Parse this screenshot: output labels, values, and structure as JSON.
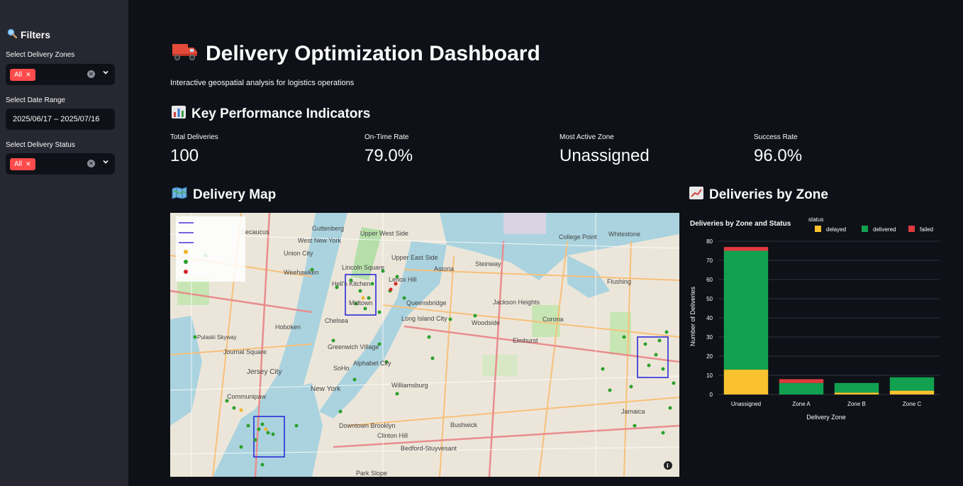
{
  "sidebar": {
    "title": "Filters",
    "zones_label": "Select Delivery Zones",
    "zones_chip": "All",
    "date_label": "Select Date Range",
    "date_value": "2025/06/17 – 2025/07/16",
    "status_label": "Select Delivery Status",
    "status_chip": "All"
  },
  "header": {
    "title": "Delivery Optimization Dashboard",
    "subtitle": "Interactive geospatial analysis for logistics operations"
  },
  "kpi": {
    "heading": "Key Performance Indicators",
    "items": [
      {
        "label": "Total Deliveries",
        "value": "100"
      },
      {
        "label": "On-Time Rate",
        "value": "79.0%"
      },
      {
        "label": "Most Active Zone",
        "value": "Unassigned"
      },
      {
        "label": "Success Rate",
        "value": "96.0%"
      }
    ]
  },
  "map_section": {
    "heading": "Delivery Map",
    "places": [
      "Guttenberg",
      "West New York",
      "Union City",
      "Weehawken",
      "Hell's Kitchen",
      "Midtown",
      "Hoboken",
      "Jersey City",
      "Chelsea",
      "Greenwich Village",
      "SoHo",
      "Alphabet City",
      "New York",
      "Williamsburg",
      "Astoria",
      "Upper East Side",
      "Upper West Side",
      "Queensbridge",
      "Long Island City",
      "Jackson Heights",
      "Corona",
      "Elmhurst",
      "Woodside",
      "Flushing",
      "Whitestone",
      "College Point",
      "Steinway",
      "Lenox Hill",
      "Lincoln Square",
      "Secaucus",
      "Journal Square",
      "Communipaw",
      "Downtown Brooklyn",
      "Clinton Hill",
      "Bushwick",
      "Bedford-Stuyvesant",
      "Jamaica",
      "Pulaski Skyway",
      "Park Slope"
    ]
  },
  "chart_section": {
    "heading": "Deliveries by Zone"
  },
  "chart_data": {
    "type": "bar",
    "stacked": true,
    "title": "Deliveries by Zone and Status",
    "legend_title": "status",
    "legend_position": "top-right",
    "xlabel": "Delivery Zone",
    "ylabel": "Number of Deliveries",
    "ylim": [
      0,
      80
    ],
    "yticks": [
      0,
      10,
      20,
      30,
      40,
      50,
      60,
      70,
      80
    ],
    "grid": true,
    "categories": [
      "Unassigned",
      "Zone A",
      "Zone B",
      "Zone C"
    ],
    "series": [
      {
        "name": "delayed",
        "color": "#f9c22e",
        "values": [
          13,
          0,
          1,
          2
        ]
      },
      {
        "name": "delivered",
        "color": "#12a150",
        "values": [
          62,
          6,
          5,
          7
        ]
      },
      {
        "name": "failed",
        "color": "#e03a3e",
        "values": [
          2,
          2,
          0,
          0
        ]
      }
    ]
  },
  "colors": {
    "accent": "#ff4b4b",
    "background": "#0e1117",
    "sidebar": "#262730"
  }
}
